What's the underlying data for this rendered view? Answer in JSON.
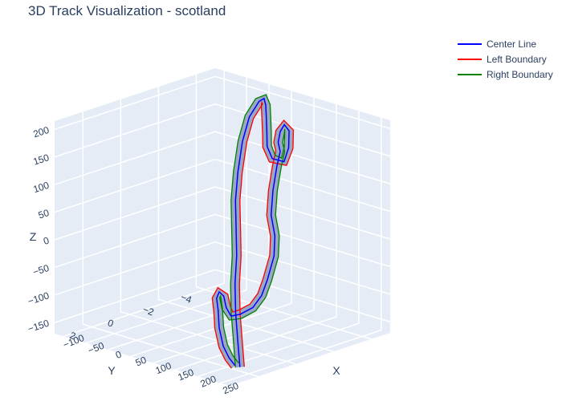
{
  "chart_data": {
    "type": "line",
    "title": "3D Track Visualization - scotland",
    "axes": {
      "x": {
        "label": "X",
        "ticks": [
          -100,
          -50,
          0,
          50,
          100,
          150,
          200,
          250
        ],
        "range": [
          -120,
          270
        ]
      },
      "y": {
        "label": "Y",
        "ticks": [
          -4,
          -2,
          0,
          2
        ],
        "range": [
          -5,
          3.5
        ]
      },
      "z": {
        "label": "Z",
        "ticks": [
          -150,
          -100,
          -50,
          0,
          50,
          100,
          150,
          200
        ],
        "range": [
          -170,
          215
        ]
      }
    },
    "grid": true,
    "legend_position": "top-right",
    "series": [
      {
        "name": "Center Line",
        "color": "#0000ff"
      },
      {
        "name": "Left Boundary",
        "color": "#ff0000"
      },
      {
        "name": "Right Boundary",
        "color": "#008000"
      }
    ],
    "track_points": [
      {
        "x": 255,
        "y": 2.6,
        "z": -150
      },
      {
        "x": 225,
        "y": 2.0,
        "z": -115
      },
      {
        "x": 195,
        "y": 1.4,
        "z": -80
      },
      {
        "x": 160,
        "y": 0.6,
        "z": -45
      },
      {
        "x": 130,
        "y": -0.2,
        "z": -10
      },
      {
        "x": 95,
        "y": -1.0,
        "z": 20
      },
      {
        "x": 60,
        "y": -1.8,
        "z": 55
      },
      {
        "x": 40,
        "y": -2.4,
        "z": 95
      },
      {
        "x": 25,
        "y": -3.0,
        "z": 140
      },
      {
        "x": 15,
        "y": -3.6,
        "z": 175
      },
      {
        "x": 20,
        "y": -4.0,
        "z": 200
      },
      {
        "x": 35,
        "y": -3.9,
        "z": 210
      },
      {
        "x": 60,
        "y": -3.4,
        "z": 210
      },
      {
        "x": 95,
        "y": -2.6,
        "z": 205
      },
      {
        "x": 130,
        "y": -1.8,
        "z": 195
      },
      {
        "x": 160,
        "y": -1.1,
        "z": 185
      },
      {
        "x": 180,
        "y": -0.9,
        "z": 170
      },
      {
        "x": 185,
        "y": -1.4,
        "z": 160
      },
      {
        "x": 170,
        "y": -2.0,
        "z": 175
      },
      {
        "x": 150,
        "y": -2.5,
        "z": 195
      },
      {
        "x": 152,
        "y": -2.2,
        "z": 210
      },
      {
        "x": 168,
        "y": -1.6,
        "z": 208
      },
      {
        "x": 172,
        "y": -1.4,
        "z": 192
      },
      {
        "x": 168,
        "y": -1.6,
        "z": 172
      },
      {
        "x": 190,
        "y": -0.9,
        "z": 158
      },
      {
        "x": 215,
        "y": -0.1,
        "z": 130
      },
      {
        "x": 232,
        "y": 0.4,
        "z": 95
      },
      {
        "x": 232,
        "y": 0.2,
        "z": 55
      },
      {
        "x": 230,
        "y": 0.2,
        "z": 18
      },
      {
        "x": 232,
        "y": 0.6,
        "z": -20
      },
      {
        "x": 232,
        "y": 0.9,
        "z": -45
      },
      {
        "x": 225,
        "y": 1.2,
        "z": -65
      },
      {
        "x": 205,
        "y": 1.4,
        "z": -80
      },
      {
        "x": 185,
        "y": 1.4,
        "z": -88
      },
      {
        "x": 170,
        "y": 1.3,
        "z": -78
      },
      {
        "x": 160,
        "y": 1.2,
        "z": -60
      },
      {
        "x": 150,
        "y": 1.2,
        "z": -55
      },
      {
        "x": 140,
        "y": 1.1,
        "z": -70
      },
      {
        "x": 135,
        "y": 0.9,
        "z": -95
      },
      {
        "x": 150,
        "y": 1.2,
        "z": -120
      },
      {
        "x": 180,
        "y": 1.7,
        "z": -140
      },
      {
        "x": 210,
        "y": 2.1,
        "z": -150
      },
      {
        "x": 240,
        "y": 2.5,
        "z": -152
      }
    ]
  }
}
